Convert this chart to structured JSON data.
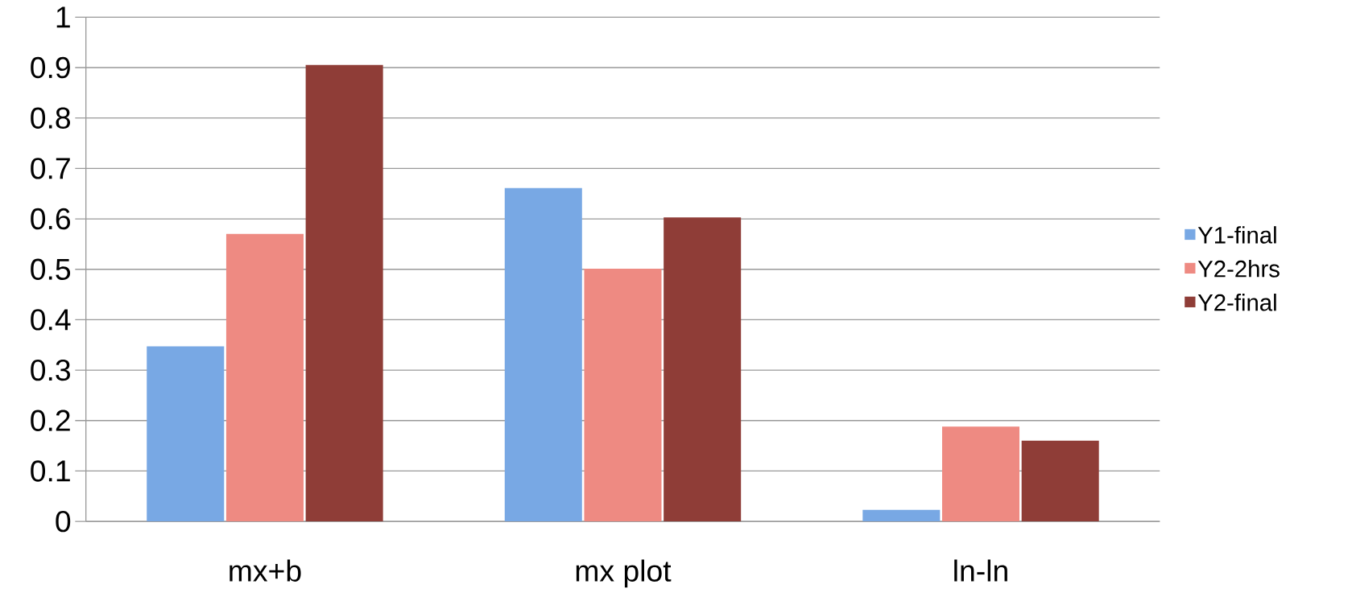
{
  "chart_data": {
    "type": "bar",
    "categories": [
      "mx+b",
      "mx plot",
      "ln-ln"
    ],
    "series": [
      {
        "name": "Y1-final",
        "color": "#78a8e4",
        "values": [
          0.347,
          0.661,
          0.023
        ]
      },
      {
        "name": "Y2-2hrs",
        "color": "#ee8a82",
        "values": [
          0.57,
          0.501,
          0.188
        ]
      },
      {
        "name": "Y2-final",
        "color": "#8f3d37",
        "values": [
          0.905,
          0.603,
          0.16
        ]
      }
    ],
    "ylim": [
      0,
      1
    ],
    "yticks": [
      0,
      0.1,
      0.2,
      0.3,
      0.4,
      0.5,
      0.6,
      0.7,
      0.8,
      0.9,
      1
    ],
    "grid": "y",
    "legend": "right"
  }
}
